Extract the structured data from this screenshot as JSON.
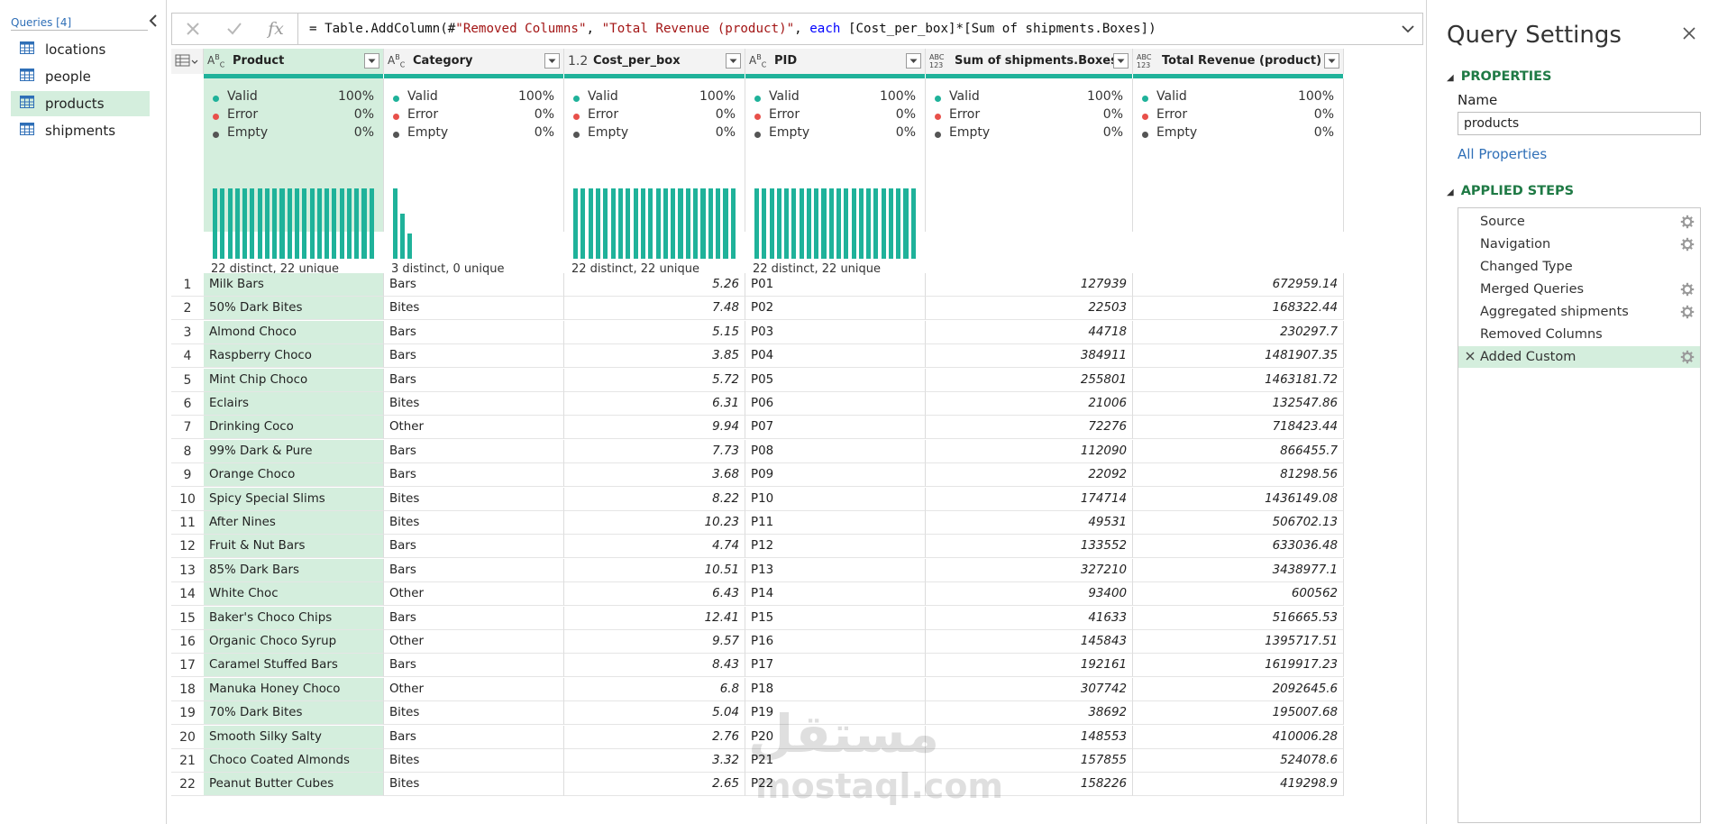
{
  "queries_pane": {
    "header": "Queries [4]",
    "collapse_icon": "chevron-left-icon",
    "items": [
      {
        "label": "locations",
        "selected": false
      },
      {
        "label": "people",
        "selected": false
      },
      {
        "label": "products",
        "selected": true
      },
      {
        "label": "shipments",
        "selected": false
      }
    ]
  },
  "formula_bar": {
    "cancel_icon": "close-icon",
    "commit_icon": "check-icon",
    "fx_label": "fx",
    "formula_parts": [
      {
        "text": "= Table.AddColumn(#",
        "cls": ""
      },
      {
        "text": "\"Removed Columns\"",
        "cls": "f-str"
      },
      {
        "text": ", ",
        "cls": ""
      },
      {
        "text": "\"Total Revenue (product)\"",
        "cls": "f-str"
      },
      {
        "text": ", ",
        "cls": ""
      },
      {
        "text": "each",
        "cls": "f-kw"
      },
      {
        "text": " [Cost_per_box]*[Sum of shipments.Boxes])",
        "cls": ""
      }
    ]
  },
  "grid": {
    "columns": [
      {
        "name": "Product",
        "type_label": "ABC",
        "selected": true,
        "stats": {
          "valid": "100%",
          "error": "0%",
          "empty": "0%"
        },
        "distinct": "22 distinct, 22 unique",
        "histogram": "uniform"
      },
      {
        "name": "Category",
        "type_label": "ABC",
        "selected": false,
        "stats": {
          "valid": "100%",
          "error": "0%",
          "empty": "0%"
        },
        "distinct": "3 distinct, 0 unique",
        "histogram": [
          11,
          7,
          4
        ]
      },
      {
        "name": "Cost_per_box",
        "type_label": "1.2",
        "selected": false,
        "stats": {
          "valid": "100%",
          "error": "0%",
          "empty": "0%"
        },
        "distinct": "22 distinct, 22 unique",
        "histogram": "uniform"
      },
      {
        "name": "PID",
        "type_label": "ABC",
        "selected": false,
        "stats": {
          "valid": "100%",
          "error": "0%",
          "empty": "0%"
        },
        "distinct": "22 distinct, 22 unique",
        "histogram": "uniform"
      },
      {
        "name": "Sum of shipments.Boxes",
        "type_label": "ABC123",
        "selected": false,
        "stats": {
          "valid": "100%",
          "error": "0%",
          "empty": "0%"
        },
        "distinct": "",
        "histogram": "none"
      },
      {
        "name": "Total Revenue (product)",
        "type_label": "ABC123",
        "selected": false,
        "stats": {
          "valid": "100%",
          "error": "0%",
          "empty": "0%"
        },
        "distinct": "",
        "histogram": "none"
      }
    ],
    "stat_labels": {
      "valid": "Valid",
      "error": "Error",
      "empty": "Empty"
    },
    "stat_colors": {
      "valid": "#1fb29a",
      "error": "#e8504a",
      "empty": "#555555"
    },
    "rows": [
      [
        "Milk Bars",
        "Bars",
        "5.26",
        "P01",
        "127939",
        "672959.14"
      ],
      [
        "50% Dark Bites",
        "Bites",
        "7.48",
        "P02",
        "22503",
        "168322.44"
      ],
      [
        "Almond Choco",
        "Bars",
        "5.15",
        "P03",
        "44718",
        "230297.7"
      ],
      [
        "Raspberry Choco",
        "Bars",
        "3.85",
        "P04",
        "384911",
        "1481907.35"
      ],
      [
        "Mint Chip Choco",
        "Bars",
        "5.72",
        "P05",
        "255801",
        "1463181.72"
      ],
      [
        "Eclairs",
        "Bites",
        "6.31",
        "P06",
        "21006",
        "132547.86"
      ],
      [
        "Drinking Coco",
        "Other",
        "9.94",
        "P07",
        "72276",
        "718423.44"
      ],
      [
        "99% Dark & Pure",
        "Bars",
        "7.73",
        "P08",
        "112090",
        "866455.7"
      ],
      [
        "Orange Choco",
        "Bars",
        "3.68",
        "P09",
        "22092",
        "81298.56"
      ],
      [
        "Spicy Special Slims",
        "Bites",
        "8.22",
        "P10",
        "174714",
        "1436149.08"
      ],
      [
        "After Nines",
        "Bites",
        "10.23",
        "P11",
        "49531",
        "506702.13"
      ],
      [
        "Fruit & Nut Bars",
        "Bars",
        "4.74",
        "P12",
        "133552",
        "633036.48"
      ],
      [
        "85% Dark Bars",
        "Bars",
        "10.51",
        "P13",
        "327210",
        "3438977.1"
      ],
      [
        "White Choc",
        "Other",
        "6.43",
        "P14",
        "93400",
        "600562"
      ],
      [
        "Baker's Choco Chips",
        "Bars",
        "12.41",
        "P15",
        "41633",
        "516665.53"
      ],
      [
        "Organic Choco Syrup",
        "Other",
        "9.57",
        "P16",
        "145843",
        "1395717.51"
      ],
      [
        "Caramel Stuffed Bars",
        "Bars",
        "8.43",
        "P17",
        "192161",
        "1619917.23"
      ],
      [
        "Manuka Honey Choco",
        "Other",
        "6.8",
        "P18",
        "307742",
        "2092645.6"
      ],
      [
        "70% Dark Bites",
        "Bites",
        "5.04",
        "P19",
        "38692",
        "195007.68"
      ],
      [
        "Smooth Silky Salty",
        "Bars",
        "2.76",
        "P20",
        "148553",
        "410006.28"
      ],
      [
        "Choco Coated Almonds",
        "Bites",
        "3.32",
        "P21",
        "157855",
        "524078.6"
      ],
      [
        "Peanut Butter Cubes",
        "Bites",
        "2.65",
        "P22",
        "158226",
        "419298.9"
      ]
    ],
    "numeric_columns": [
      2,
      4,
      5
    ]
  },
  "watermark": {
    "arabic": "مستقل",
    "latin": "mostaql.com"
  },
  "settings": {
    "title": "Query Settings",
    "close_icon": "close-icon",
    "properties_title": "PROPERTIES",
    "name_label": "Name",
    "name_value": "products",
    "all_properties": "All Properties",
    "steps_title": "APPLIED STEPS",
    "steps": [
      {
        "label": "Source",
        "gear": true,
        "selected": false,
        "deletable": false
      },
      {
        "label": "Navigation",
        "gear": true,
        "selected": false,
        "deletable": false
      },
      {
        "label": "Changed Type",
        "gear": false,
        "selected": false,
        "deletable": false
      },
      {
        "label": "Merged Queries",
        "gear": true,
        "selected": false,
        "deletable": false
      },
      {
        "label": "Aggregated shipments",
        "gear": true,
        "selected": false,
        "deletable": false
      },
      {
        "label": "Removed Columns",
        "gear": false,
        "selected": false,
        "deletable": false
      },
      {
        "label": "Added Custom",
        "gear": true,
        "selected": true,
        "deletable": true
      }
    ]
  },
  "colors": {
    "accent_green": "#1f7a45",
    "teal": "#1fb29a",
    "selection": "#d4eedd",
    "link_blue": "#2f6fb7"
  }
}
